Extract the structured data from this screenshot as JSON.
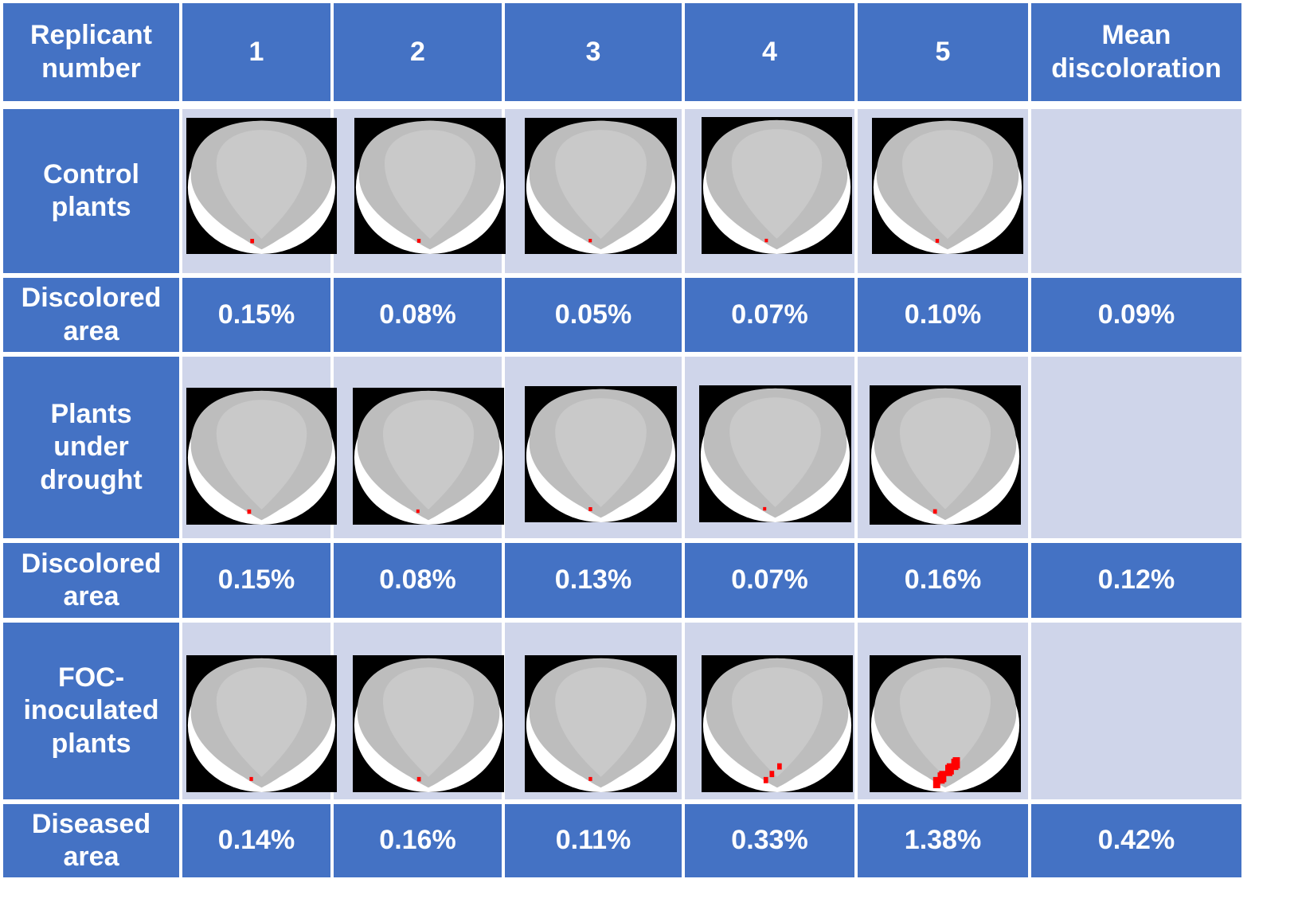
{
  "header": {
    "first": "Replicant number",
    "replicates": [
      "1",
      "2",
      "3",
      "4",
      "5"
    ],
    "last": "Mean discoloration"
  },
  "sections": [
    {
      "image_label": "Control plants",
      "value_label": "Discolored area",
      "values": [
        "0.15%",
        "0.08%",
        "0.05%",
        "0.07%",
        "0.10%"
      ],
      "mean": "0.09%",
      "spots": [
        [
          0.55,
          0.15
        ],
        [
          0.45,
          0.1
        ],
        [
          0.5,
          0.05
        ],
        [
          0.5,
          0.05
        ],
        [
          0.5,
          0.1
        ]
      ]
    },
    {
      "image_label": "Plants under drought",
      "value_label": "Discolored area",
      "values": [
        "0.15%",
        "0.08%",
        "0.13%",
        "0.07%",
        "0.16%"
      ],
      "mean": "0.12%",
      "spots": [
        [
          0.35,
          0.15
        ],
        [
          0.5,
          0.05
        ],
        [
          0.5,
          0.1
        ],
        [
          0.5,
          0.05
        ],
        [
          0.5,
          0.15
        ]
      ]
    },
    {
      "image_label": "FOC-inoculated plants",
      "value_label": "Diseased area",
      "values": [
        "0.14%",
        "0.16%",
        "0.11%",
        "0.33%",
        "1.38%"
      ],
      "mean": "0.42%",
      "spots": [
        [
          0.5,
          0.1
        ],
        [
          0.55,
          0.15
        ],
        [
          0.5,
          0.1
        ],
        [
          0.4,
          0.35
        ],
        [
          0.5,
          0.9
        ]
      ]
    }
  ],
  "colors": {
    "cell_blue": "#4472c4",
    "cell_light": "#cfd5ea",
    "discoloration_red": "#ff0000"
  }
}
